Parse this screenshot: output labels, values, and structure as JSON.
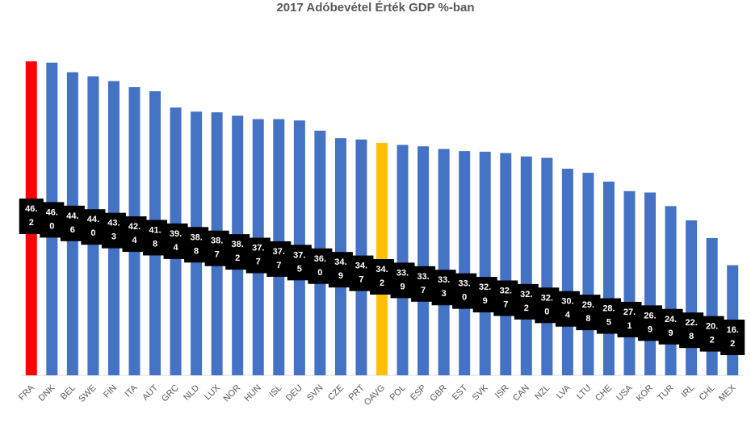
{
  "chart_data": {
    "type": "bar",
    "title": "2017 Adóbevétel Érték GDP %-ban",
    "xlabel": "",
    "ylabel": "",
    "ylim": [
      0,
      50
    ],
    "grid": false,
    "legend": "none",
    "categories": [
      "FRA",
      "DNK",
      "BEL",
      "SWE",
      "FIN",
      "ITA",
      "AUT",
      "GRC",
      "NLD",
      "LUX",
      "NOR",
      "HUN",
      "ISL",
      "DEU",
      "SVN",
      "CZE",
      "PRT",
      "OAVG",
      "POL",
      "ESP",
      "GBR",
      "EST",
      "SVK",
      "ISR",
      "CAN",
      "NZL",
      "LVA",
      "LTU",
      "CHE",
      "USA",
      "KOR",
      "TUR",
      "IRL",
      "CHL",
      "MEX"
    ],
    "values": [
      46.2,
      46.0,
      44.6,
      44.0,
      43.3,
      42.4,
      41.8,
      39.4,
      38.8,
      38.7,
      38.2,
      37.7,
      37.7,
      37.5,
      36.0,
      34.9,
      34.7,
      34.2,
      33.9,
      33.7,
      33.3,
      33.0,
      32.9,
      32.7,
      32.2,
      32.0,
      30.4,
      29.8,
      28.5,
      27.1,
      26.9,
      24.9,
      22.8,
      20.2,
      16.2
    ],
    "data_labels": [
      [
        "46.",
        "2"
      ],
      [
        "46.",
        "0"
      ],
      [
        "44.",
        "6"
      ],
      [
        "44.",
        "0"
      ],
      [
        "43.",
        "3"
      ],
      [
        "42.",
        "4"
      ],
      [
        "41.",
        "8"
      ],
      [
        "39.",
        "4"
      ],
      [
        "38.",
        "8"
      ],
      [
        "38.",
        "7"
      ],
      [
        "38.",
        "2"
      ],
      [
        "37.",
        "7"
      ],
      [
        "37.",
        "7"
      ],
      [
        "37.",
        "5"
      ],
      [
        "36.",
        "0"
      ],
      [
        "34.",
        "9"
      ],
      [
        "34.",
        "7"
      ],
      [
        "34.",
        "2"
      ],
      [
        "33.",
        "9"
      ],
      [
        "33.",
        "7"
      ],
      [
        "33.",
        "3"
      ],
      [
        "33.",
        "0"
      ],
      [
        "32.",
        "9"
      ],
      [
        "32.",
        "7"
      ],
      [
        "32.",
        "2"
      ],
      [
        "32.",
        "0"
      ],
      [
        "30.",
        "4"
      ],
      [
        "29.",
        "8"
      ],
      [
        "28.",
        "5"
      ],
      [
        "27.",
        "1"
      ],
      [
        "26.",
        "9"
      ],
      [
        "24.",
        "9"
      ],
      [
        "22.",
        "8"
      ],
      [
        "20.",
        "2"
      ],
      [
        "16.",
        "2"
      ]
    ],
    "colors": {
      "default": "#4472C4",
      "highlight_first": "#FF0000",
      "highlight_average": "#FFC000",
      "label_background": "#000000",
      "label_text": "#FFFFFF"
    },
    "highlight": {
      "FRA": "#FF0000",
      "OAVG": "#FFC000"
    }
  }
}
